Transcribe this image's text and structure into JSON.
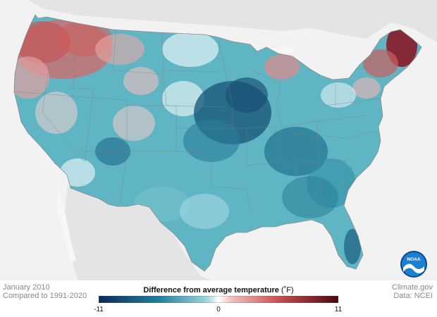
{
  "map": {
    "region": "Contiguous United States",
    "legend": {
      "title": "Difference from average temperature",
      "unit": "(˚F)",
      "min_label": "-11",
      "mid_label": "0",
      "max_label": "11",
      "min": -11,
      "max": 11,
      "colors": {
        "cold_extreme": "#0d2a5a",
        "cold": "#1f86a3",
        "neutral": "#ffffff",
        "warm": "#d7666a",
        "warm_extreme": "#4d0610"
      }
    },
    "colors": {
      "background": "#f2f2f2",
      "land_outside": "#e4e4e4",
      "water": "#f7f7f7",
      "state_borders": "#8c8c8c"
    }
  },
  "footer": {
    "date": "January 2010",
    "comparison": "Compared to 1991-2020",
    "source_site": "Climate.gov",
    "data_source": "Data: NCEI"
  },
  "logo": {
    "text": "NOAA",
    "icon": "noaa-logo-icon"
  }
}
